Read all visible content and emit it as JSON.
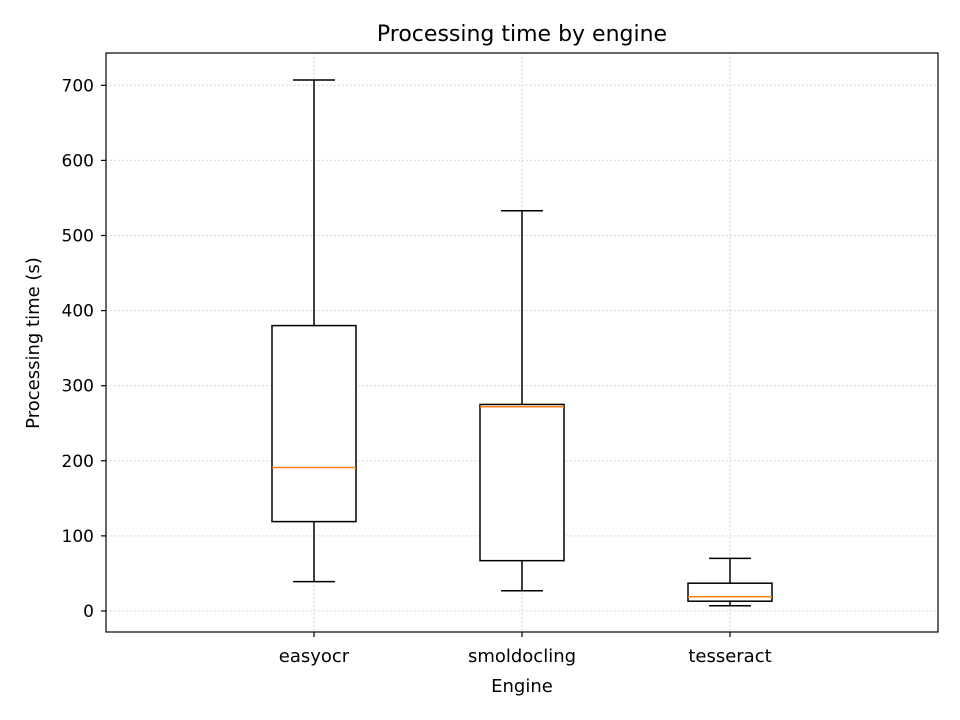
{
  "chart_data": {
    "type": "box",
    "title": "Processing time by engine",
    "xlabel": "Engine",
    "ylabel": "Processing time (s)",
    "ylim": [
      -28,
      743
    ],
    "yticks": [
      0,
      100,
      200,
      300,
      400,
      500,
      600,
      700
    ],
    "grid": true,
    "categories": [
      "easyocr",
      "smoldocling",
      "tesseract"
    ],
    "boxes": [
      {
        "category": "easyocr",
        "whisker_low": 39,
        "q1": 119,
        "median": 191,
        "q3": 380,
        "whisker_high": 707
      },
      {
        "category": "smoldocling",
        "whisker_low": 27,
        "q1": 67,
        "median": 272,
        "q3": 275,
        "whisker_high": 533
      },
      {
        "category": "tesseract",
        "whisker_low": 7,
        "q1": 13,
        "median": 19,
        "q3": 37,
        "whisker_high": 70
      }
    ],
    "colors": {
      "box": "#000000",
      "median": "#ff7f0e",
      "grid": "#cccccc"
    }
  }
}
